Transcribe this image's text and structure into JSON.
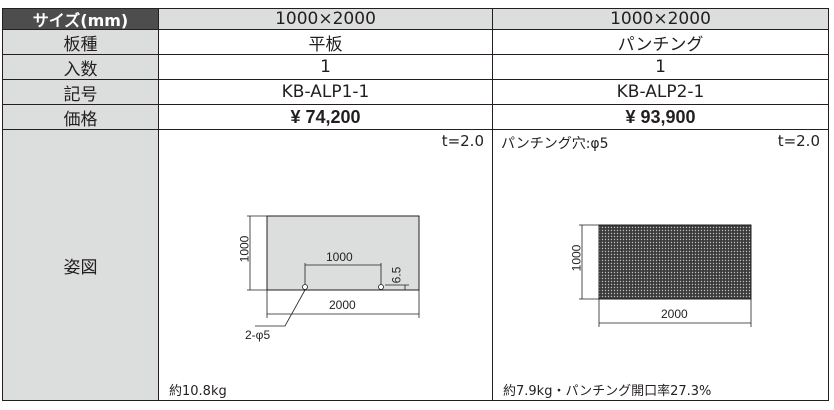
{
  "header": {
    "label": "サイズ(mm)",
    "col1": "1000×2000",
    "col2": "1000×2000"
  },
  "rows": [
    {
      "label": "板種",
      "col1": "平板",
      "col2": "パンチング"
    },
    {
      "label": "入数",
      "col1": "1",
      "col2": "1"
    },
    {
      "label": "記号",
      "col1": "KB-ALP1-1",
      "col2": "KB-ALP2-1"
    },
    {
      "label": "価格",
      "col1": "¥ 74,200",
      "col2": "¥ 93,900"
    }
  ],
  "figure": {
    "label": "姿図",
    "col1": {
      "thickness": "t=2.0",
      "height_dim": "1000",
      "hole_span": "1000",
      "hole_offset": "6.5",
      "width_dim": "2000",
      "holes": "2-φ5",
      "weight": "約10.8kg"
    },
    "col2": {
      "hole_note": "パンチング穴:φ5",
      "thickness": "t=2.0",
      "height_dim": "1000",
      "width_dim": "2000",
      "weight": "約7.9kg・パンチング開口率27.3%"
    }
  }
}
